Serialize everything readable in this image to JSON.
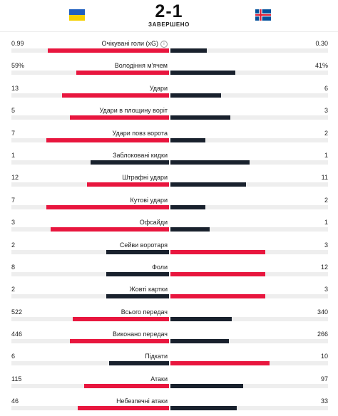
{
  "match": {
    "score": "2-1",
    "status": "ЗАВЕРШЕНО",
    "home_flag": "ukraine-flag",
    "away_flag": "iceland-flag"
  },
  "colors": {
    "leader": "#e8163e",
    "trailer": "#19212d",
    "track": "#eeeeee"
  },
  "stats": [
    {
      "label": "Очікувані голи (xG)",
      "home": "0.99",
      "away": "0.30",
      "home_share": 0.77,
      "away_share": 0.23,
      "info": true
    },
    {
      "label": "Володіння м'ячем",
      "home": "59%",
      "away": "41%",
      "home_share": 0.59,
      "away_share": 0.41
    },
    {
      "label": "Удари",
      "home": "13",
      "away": "6",
      "home_share": 0.68,
      "away_share": 0.32
    },
    {
      "label": "Удари в площину воріт",
      "home": "5",
      "away": "3",
      "home_share": 0.63,
      "away_share": 0.38
    },
    {
      "label": "Удари повз ворота",
      "home": "7",
      "away": "2",
      "home_share": 0.78,
      "away_share": 0.22
    },
    {
      "label": "Заблоковані кидки",
      "home": "1",
      "away": "1",
      "home_share": 0.5,
      "away_share": 0.5
    },
    {
      "label": "Штрафні удари",
      "home": "12",
      "away": "11",
      "home_share": 0.52,
      "away_share": 0.48
    },
    {
      "label": "Кутові удари",
      "home": "7",
      "away": "2",
      "home_share": 0.78,
      "away_share": 0.22
    },
    {
      "label": "Офсайди",
      "home": "3",
      "away": "1",
      "home_share": 0.75,
      "away_share": 0.25
    },
    {
      "label": "Сейви воротаря",
      "home": "2",
      "away": "3",
      "home_share": 0.4,
      "away_share": 0.6
    },
    {
      "label": "Фоли",
      "home": "8",
      "away": "12",
      "home_share": 0.4,
      "away_share": 0.6
    },
    {
      "label": "Жовті картки",
      "home": "2",
      "away": "3",
      "home_share": 0.4,
      "away_share": 0.6
    },
    {
      "label": "Всього передач",
      "home": "522",
      "away": "340",
      "home_share": 0.61,
      "away_share": 0.39
    },
    {
      "label": "Виконано передач",
      "home": "446",
      "away": "266",
      "home_share": 0.63,
      "away_share": 0.37
    },
    {
      "label": "Підкати",
      "home": "6",
      "away": "10",
      "home_share": 0.38,
      "away_share": 0.63
    },
    {
      "label": "Атаки",
      "home": "115",
      "away": "97",
      "home_share": 0.54,
      "away_share": 0.46
    },
    {
      "label": "Небезпечні атаки",
      "home": "46",
      "away": "33",
      "home_share": 0.58,
      "away_share": 0.42
    }
  ]
}
